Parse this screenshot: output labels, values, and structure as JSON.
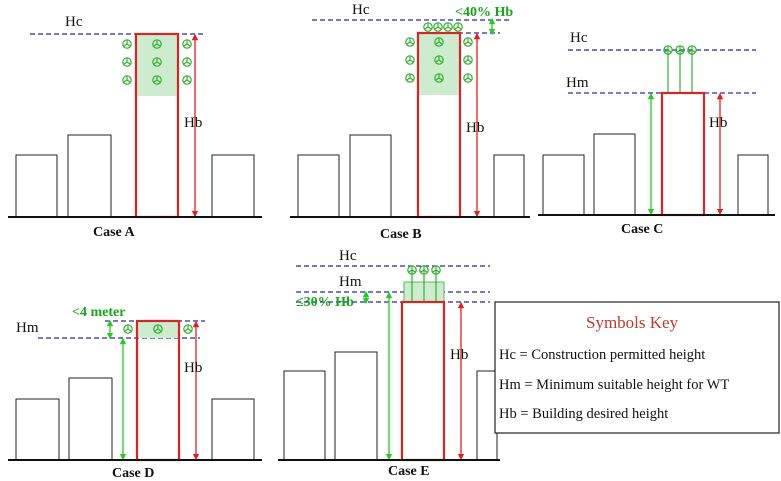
{
  "colors": {
    "dashed_line": "#2a2aa0",
    "building_outline": "#dd2222",
    "arrow_red": "#dd2222",
    "arrow_green": "#22cc22",
    "turbine_green": "#2fb32f",
    "fill_green": "#cdeccd",
    "key_title": "#c0392b"
  },
  "labels": {
    "hc": "Hc",
    "hm": "Hm",
    "hb": "Hb",
    "b_limit": "<40% Hb",
    "d_limit": "<4 meter",
    "e_limit": "≤30% Hb"
  },
  "cases": {
    "a": "Case A",
    "b": "Case B",
    "c": "Case C",
    "d": "Case D",
    "e": "Case E"
  },
  "symbols_key": {
    "title": "Symbols Key",
    "hc": "Hc = Construction permitted height",
    "hm": "Hm = Minimum suitable height for WT",
    "hb": "Hb = Building desired height"
  }
}
